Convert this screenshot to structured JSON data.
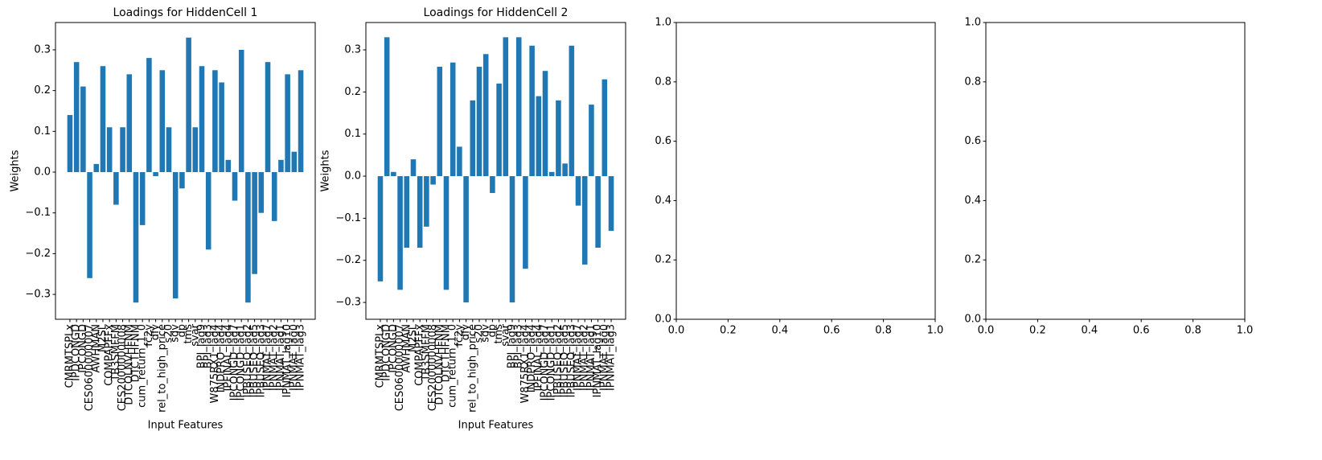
{
  "chart_data": [
    {
      "type": "bar",
      "title": "Loadings for HiddenCell 1",
      "x_label": "Input Features",
      "y_label": "Weights",
      "color": "#1f77b4",
      "categories": [
        "CMRMTSPLx",
        "IPDCONGD",
        "IPCONGD",
        "CES0600000007",
        "AWHMAN",
        "M2SL",
        "COMPAPFFx",
        "TB3SMFFM",
        "CES2000000008",
        "DTCOLNVHFNM",
        "DTCTHFNM",
        "cum_return_1_0",
        "fc2y",
        "dfy",
        "rel_to_high_price",
        "s20",
        "sdv",
        "dp",
        "tms",
        "svar",
        "BPI_lag9",
        "BPI_lag3",
        "W875RX1_lag4",
        "INDPRO_lag4",
        "IPFINAL_lag4",
        "IPCONGD_lag7",
        "IPCONGD_lag1",
        "IPBUSEQ_lag2",
        "IPBUSEQ_lag5",
        "IPBUSEQ_lag3",
        "IPNMAT_lag7",
        "IPNMAT_lag2",
        "IPNMAT_lag1",
        "IPNMAT_lag10",
        "IPNMAT_lag0",
        "IPNMAT_lag3"
      ],
      "values": [
        0.14,
        0.27,
        0.21,
        -0.26,
        0.02,
        0.26,
        0.11,
        -0.08,
        0.11,
        0.24,
        -0.32,
        -0.13,
        0.28,
        -0.01,
        0.25,
        0.11,
        -0.31,
        -0.04,
        0.33,
        0.11,
        0.26,
        -0.19,
        0.25,
        0.22,
        0.03,
        -0.07,
        0.3,
        -0.32,
        -0.25,
        -0.1,
        0.27,
        -0.12,
        0.03,
        0.24,
        0.05,
        0.25
      ],
      "ylim": [
        -0.361,
        0.367
      ],
      "yticks": [
        {
          "value": -0.3,
          "label": "−0.3"
        },
        {
          "value": -0.2,
          "label": "−0.2"
        },
        {
          "value": -0.1,
          "label": "−0.1"
        },
        {
          "value": 0,
          "label": "0.0"
        },
        0.1,
        0.2,
        0.3
      ]
    },
    {
      "type": "bar",
      "title": "Loadings for HiddenCell 2",
      "x_label": "Input Features",
      "y_label": "Weights",
      "color": "#1f77b4",
      "categories": [
        "CMRMTSPLx",
        "IPDCONGD",
        "IPCONGD",
        "CES0600000007",
        "AWHMAN",
        "M2SL",
        "COMPAPFFx",
        "TB3SMFFM",
        "CES2000000008",
        "DTCOLNVHFNM",
        "DTCTHFNM",
        "cum_return_1_0",
        "fc2y",
        "dfy",
        "rel_to_high_price",
        "s20",
        "sdv",
        "dp",
        "tms",
        "svar",
        "BPI_lag9",
        "BPI_lag3",
        "W875RX1_lag4",
        "INDPRO_lag4",
        "IPFINAL_lag4",
        "IPCONGD_lag7",
        "IPCONGD_lag1",
        "IPBUSEQ_lag2",
        "IPBUSEQ_lag5",
        "IPBUSEQ_lag3",
        "IPNMAT_lag7",
        "IPNMAT_lag2",
        "IPNMAT_lag1",
        "IPNMAT_lag10",
        "IPNMAT_lag0",
        "IPNMAT_lag3"
      ],
      "values": [
        -0.25,
        0.33,
        0.01,
        -0.27,
        -0.17,
        0.04,
        -0.17,
        -0.12,
        -0.02,
        0.26,
        -0.27,
        0.27,
        0.07,
        -0.3,
        0.18,
        0.26,
        0.29,
        -0.04,
        0.22,
        0.33,
        -0.3,
        0.33,
        -0.22,
        0.31,
        0.19,
        0.25,
        0.01,
        0.18,
        0.03,
        0.31,
        -0.07,
        -0.21,
        0.17,
        -0.17,
        0.23,
        -0.13
      ],
      "ylim": [
        -0.34,
        0.365
      ],
      "yticks": [
        {
          "value": -0.3,
          "label": "−0.3"
        },
        {
          "value": -0.2,
          "label": "−0.2"
        },
        {
          "value": -0.1,
          "label": "−0.1"
        },
        {
          "value": 0,
          "label": "0.0"
        },
        0.1,
        0.2,
        0.3
      ]
    },
    {
      "type": "blank",
      "xlim": [
        0,
        1
      ],
      "ylim": [
        0,
        1
      ],
      "xticks": [
        {
          "value": 0,
          "label": "0.0"
        },
        0.2,
        0.4,
        0.6,
        0.8,
        {
          "value": 1,
          "label": "1.0"
        }
      ],
      "yticks": [
        {
          "value": 0,
          "label": "0.0"
        },
        0.2,
        0.4,
        0.6,
        0.8,
        {
          "value": 1,
          "label": "1.0"
        }
      ]
    },
    {
      "type": "blank",
      "xlim": [
        0,
        1
      ],
      "ylim": [
        0,
        1
      ],
      "xticks": [
        {
          "value": 0,
          "label": "0.0"
        },
        0.2,
        0.4,
        0.6,
        0.8,
        {
          "value": 1,
          "label": "1.0"
        }
      ],
      "yticks": [
        {
          "value": 0,
          "label": "0.0"
        },
        0.2,
        0.4,
        0.6,
        0.8,
        {
          "value": 1,
          "label": "1.0"
        }
      ]
    }
  ]
}
